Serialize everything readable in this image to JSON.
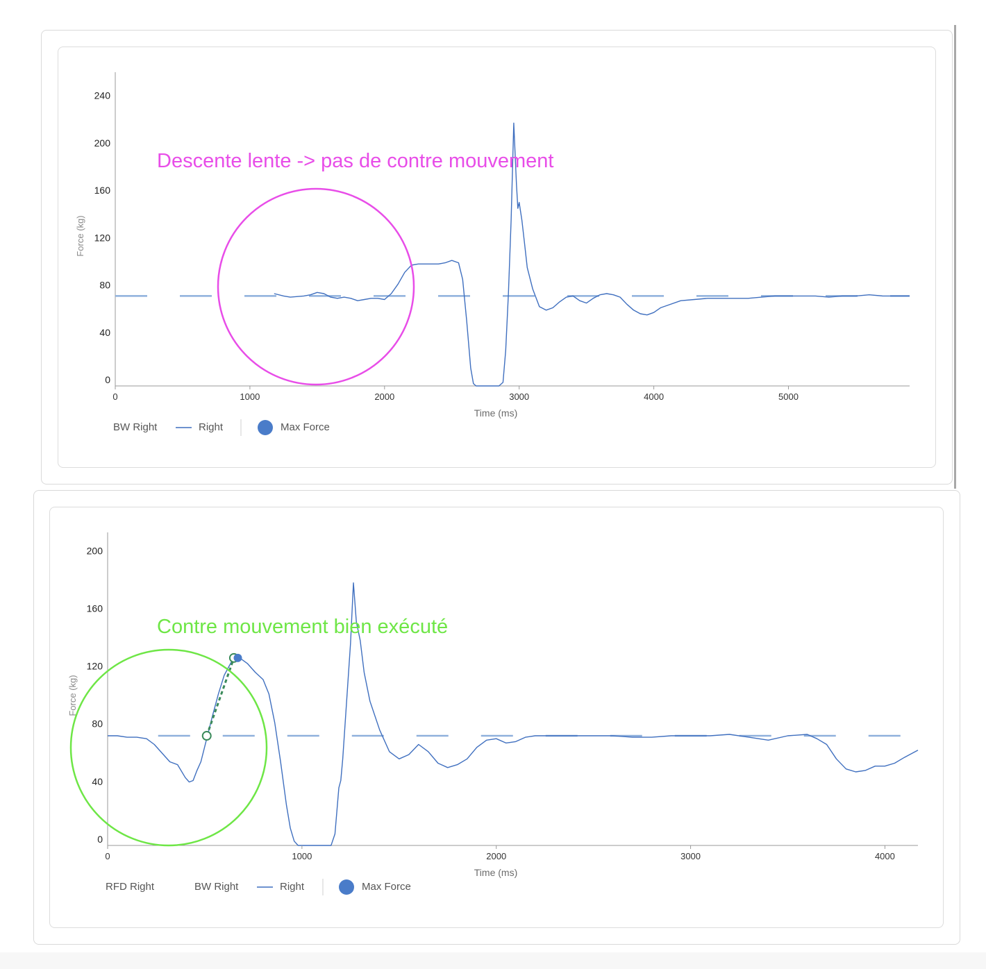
{
  "colors": {
    "line": "#3f6fbf",
    "bw_dash": "#8fb0dc",
    "max_force": "#4a7cc9",
    "rfd": "#3a8a5a",
    "annotation_top": "#e84de8",
    "annotation_bottom": "#6ee646",
    "axis": "#9a9a9a",
    "text": "#555555"
  },
  "chart_data": [
    {
      "type": "line",
      "xlabel": "Time (ms)",
      "ylabel": "Force (kg)",
      "xlim": [
        0,
        5900
      ],
      "ylim": [
        0,
        265
      ],
      "xticks": [
        0,
        1000,
        2000,
        3000,
        4000,
        5000
      ],
      "yticks": [
        0,
        40,
        80,
        120,
        160,
        200,
        240
      ],
      "bw_level": 76,
      "bw_x_range": [
        0,
        5900
      ],
      "series": [
        {
          "name": "Right",
          "x": [
            1180,
            1250,
            1300,
            1400,
            1450,
            1500,
            1550,
            1600,
            1650,
            1700,
            1750,
            1800,
            1850,
            1900,
            1950,
            2000,
            2050,
            2100,
            2150,
            2200,
            2250,
            2300,
            2350,
            2400,
            2450,
            2500,
            2550,
            2580,
            2610,
            2640,
            2660,
            2680,
            2700,
            2750,
            2800,
            2850,
            2880,
            2900,
            2920,
            2940,
            2960,
            2980,
            2990,
            3000,
            3020,
            3040,
            3060,
            3100,
            3150,
            3200,
            3250,
            3300,
            3350,
            3400,
            3450,
            3500,
            3550,
            3600,
            3650,
            3700,
            3750,
            3800,
            3850,
            3900,
            3950,
            4000,
            4050,
            4100,
            4200,
            4300,
            4400,
            4500,
            4600,
            4700,
            4800,
            4900,
            5000,
            5100,
            5200,
            5300,
            5400,
            5500,
            5600,
            5700,
            5800,
            5900
          ],
          "y": [
            78,
            76,
            75,
            76,
            77,
            79,
            78,
            75,
            74,
            75,
            74,
            72,
            73,
            74,
            74,
            73,
            78,
            86,
            96,
            102,
            103,
            103,
            103,
            103,
            104,
            106,
            104,
            90,
            55,
            15,
            2,
            0,
            0,
            0,
            0,
            0,
            3,
            30,
            78,
            140,
            222,
            170,
            150,
            155,
            140,
            120,
            100,
            82,
            67,
            64,
            66,
            71,
            75,
            76,
            72,
            70,
            74,
            77,
            78,
            77,
            75,
            69,
            64,
            61,
            60,
            62,
            66,
            68,
            72,
            73,
            74,
            74,
            74,
            74,
            75,
            76,
            76,
            76,
            76,
            75,
            76,
            76,
            77,
            76,
            76,
            76
          ]
        }
      ],
      "max_force": {
        "label": "Max Force"
      },
      "legend": [
        "BW Right",
        "Right",
        "Max Force"
      ],
      "legend_position": "bottom-left",
      "annotation": {
        "text": "Descente lente -> pas de contre mouvement"
      }
    },
    {
      "type": "line",
      "xlabel": "Time (ms)",
      "ylabel": "Force (kg)",
      "xlim": [
        0,
        4170
      ],
      "ylim": [
        0,
        217
      ],
      "xticks": [
        0,
        1000,
        2000,
        3000,
        4000
      ],
      "yticks": [
        0,
        40,
        80,
        120,
        160,
        200
      ],
      "bw_level": 76,
      "bw_x_range": [
        260,
        4170
      ],
      "series": [
        {
          "name": "Right",
          "x": [
            0,
            50,
            100,
            150,
            200,
            240,
            280,
            320,
            360,
            400,
            420,
            440,
            460,
            480,
            510,
            540,
            570,
            600,
            640,
            660,
            690,
            720,
            760,
            800,
            830,
            860,
            890,
            920,
            940,
            960,
            980,
            1000,
            1050,
            1100,
            1150,
            1170,
            1190,
            1200,
            1210,
            1230,
            1250,
            1265,
            1280,
            1300,
            1320,
            1350,
            1400,
            1450,
            1500,
            1550,
            1600,
            1650,
            1700,
            1750,
            1800,
            1850,
            1900,
            1950,
            2000,
            2050,
            2100,
            2150,
            2200,
            2300,
            2400,
            2500,
            2600,
            2700,
            2800,
            2900,
            3000,
            3100,
            3200,
            3300,
            3400,
            3500,
            3600,
            3650,
            3700,
            3750,
            3800,
            3850,
            3900,
            3950,
            4000,
            4050,
            4100,
            4170
          ],
          "y": [
            76,
            76,
            75,
            75,
            74,
            70,
            64,
            58,
            56,
            47,
            44,
            45,
            52,
            58,
            74,
            90,
            105,
            118,
            128,
            131,
            129,
            126,
            120,
            115,
            105,
            85,
            58,
            28,
            12,
            3,
            0,
            0,
            0,
            0,
            0,
            8,
            40,
            45,
            60,
            100,
            140,
            182,
            155,
            142,
            120,
            100,
            80,
            65,
            60,
            63,
            70,
            65,
            57,
            54,
            56,
            60,
            68,
            73,
            74,
            71,
            72,
            75,
            76,
            76,
            76,
            76,
            76,
            75,
            75,
            76,
            76,
            76,
            77,
            75,
            73,
            76,
            77,
            74,
            70,
            60,
            53,
            51,
            52,
            55,
            55,
            57,
            61,
            66
          ]
        }
      ],
      "max_force": {
        "label": "Max Force",
        "x": 670,
        "y": 130
      },
      "rfd": {
        "label": "RFD Right",
        "x": [
          510,
          650
        ],
        "y": [
          76,
          130
        ]
      },
      "legend": [
        "RFD Right",
        "BW Right",
        "Right",
        "Max Force"
      ],
      "legend_position": "bottom-left",
      "annotation": {
        "text": "Contre mouvement bien exécuté"
      }
    }
  ]
}
